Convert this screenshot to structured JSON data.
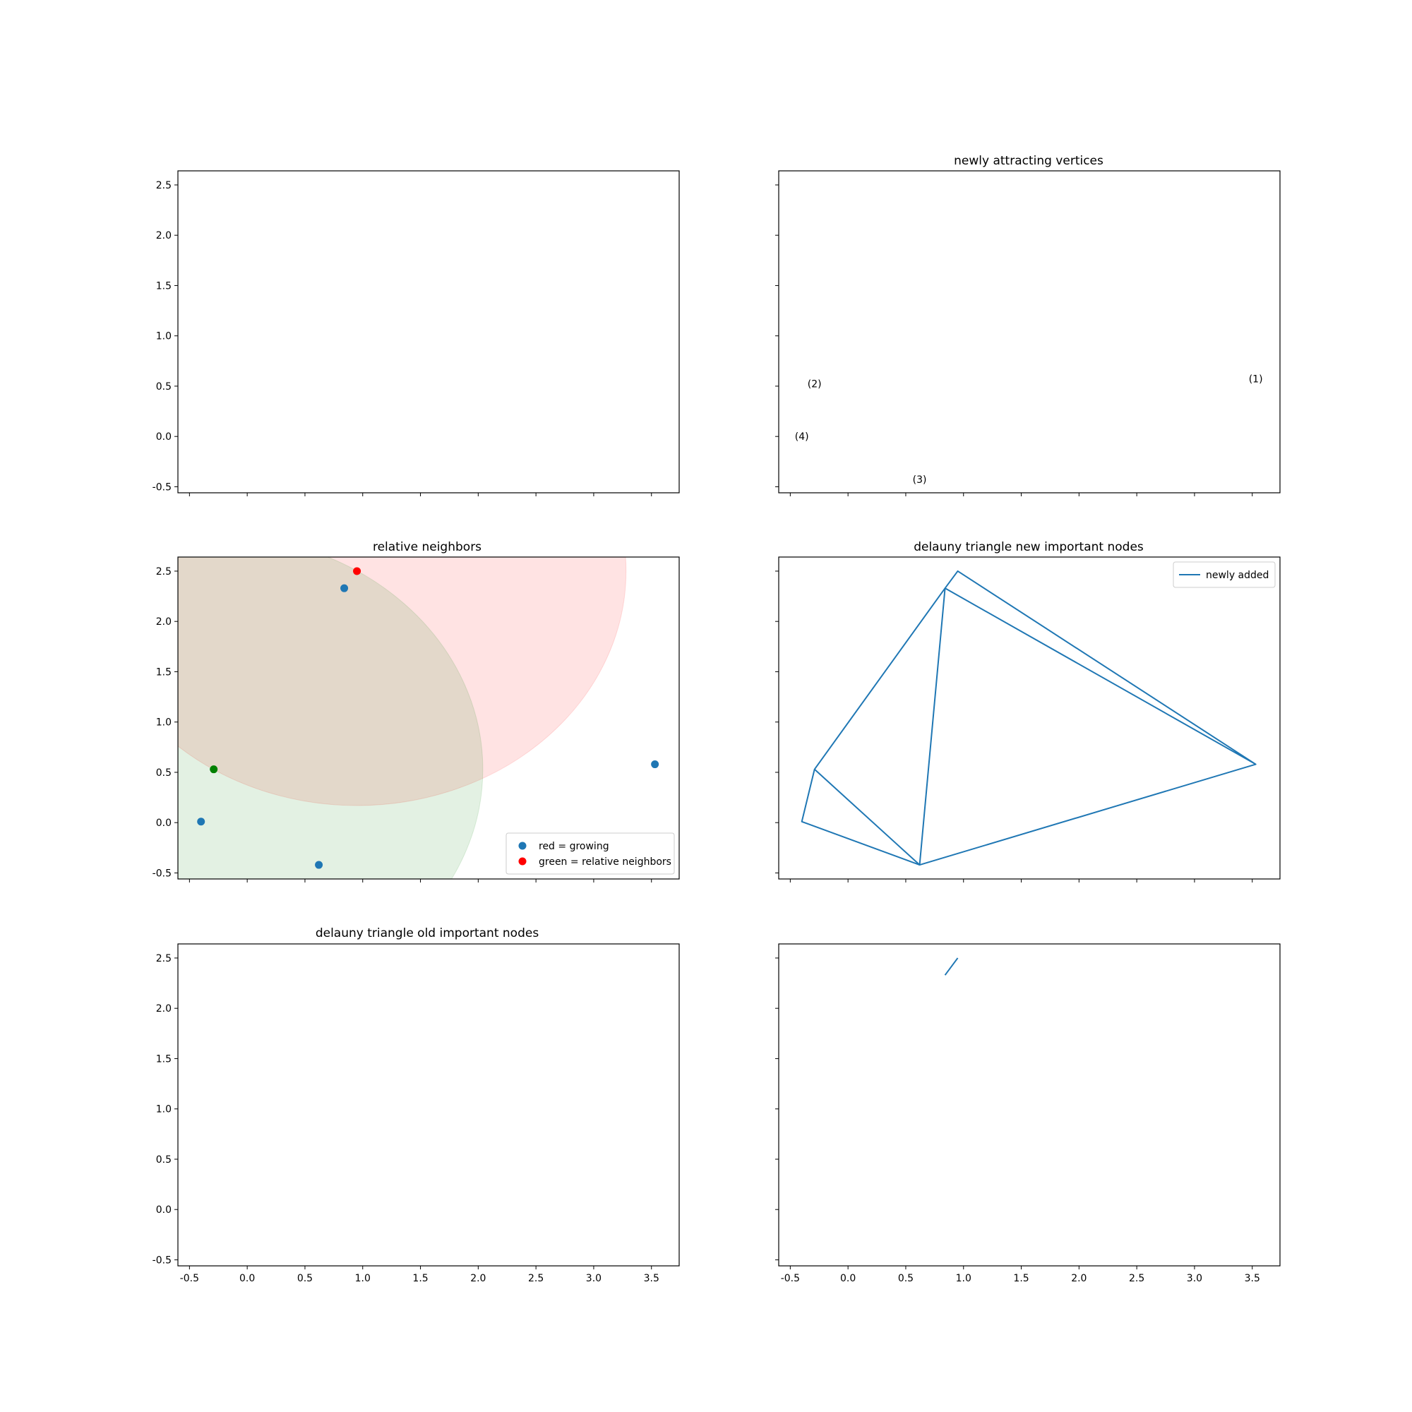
{
  "chart_data": [
    {
      "type": "scatter",
      "panel": "top-left",
      "title": "",
      "xlim": [
        -0.6,
        3.74
      ],
      "ylim": [
        -0.56,
        2.64
      ],
      "xticks": [
        -0.5,
        0.0,
        0.5,
        1.0,
        1.5,
        2.0,
        2.5,
        3.0,
        3.5
      ],
      "yticks": [
        -0.5,
        0.0,
        0.5,
        1.0,
        1.5,
        2.0,
        2.5
      ],
      "show_x_labels": false,
      "show_y_labels": true,
      "points": [],
      "circles": [],
      "lines": [],
      "annotations": []
    },
    {
      "type": "scatter",
      "panel": "top-right",
      "title": "newly attracting vertices",
      "xlim": [
        -0.6,
        3.74
      ],
      "ylim": [
        -0.56,
        2.64
      ],
      "xticks": [
        -0.5,
        0.0,
        0.5,
        1.0,
        1.5,
        2.0,
        2.5,
        3.0,
        3.5
      ],
      "yticks": [
        -0.5,
        0.0,
        0.5,
        1.0,
        1.5,
        2.0,
        2.5
      ],
      "show_x_labels": false,
      "show_y_labels": false,
      "points": [],
      "circles": [],
      "lines": [],
      "annotations": [
        {
          "text": "(1)",
          "x": 3.53,
          "y": 0.58
        },
        {
          "text": "(2)",
          "x": -0.29,
          "y": 0.53
        },
        {
          "text": "(3)",
          "x": 0.62,
          "y": -0.42
        },
        {
          "text": "(4)",
          "x": -0.4,
          "y": 0.01
        }
      ]
    },
    {
      "type": "scatter",
      "panel": "middle-left",
      "title": "relative neighbors",
      "xlim": [
        -0.6,
        3.74
      ],
      "ylim": [
        -0.56,
        2.64
      ],
      "xticks": [
        -0.5,
        0.0,
        0.5,
        1.0,
        1.5,
        2.0,
        2.5,
        3.0,
        3.5
      ],
      "yticks": [
        -0.5,
        0.0,
        0.5,
        1.0,
        1.5,
        2.0,
        2.5
      ],
      "show_x_labels": false,
      "show_y_labels": true,
      "circles": [
        {
          "cx": 0.95,
          "cy": 2.5,
          "r": 2.33,
          "color": "#ff0000",
          "opacity": 0.11
        },
        {
          "cx": -0.29,
          "cy": 0.53,
          "r": 2.33,
          "color": "#008000",
          "opacity": 0.11
        }
      ],
      "points": [
        {
          "x": 3.53,
          "y": 0.58,
          "color": "#1f77b4"
        },
        {
          "x": -0.4,
          "y": 0.01,
          "color": "#1f77b4"
        },
        {
          "x": 0.62,
          "y": -0.42,
          "color": "#1f77b4"
        },
        {
          "x": 0.84,
          "y": 2.33,
          "color": "#1f77b4"
        },
        {
          "x": 0.95,
          "y": 2.5,
          "color": "#ff0000"
        },
        {
          "x": -0.29,
          "y": 0.53,
          "color": "#008000"
        }
      ],
      "lines": [],
      "annotations": [],
      "legend": {
        "position": "lower-right",
        "items": [
          {
            "label": "red = growing",
            "color": "#1f77b4",
            "marker": "dot"
          },
          {
            "label": "green = relative neighbors",
            "color": "#ff0000",
            "marker": "dot"
          }
        ]
      }
    },
    {
      "type": "line",
      "panel": "middle-right",
      "title": "delauny triangle new important nodes",
      "xlim": [
        -0.6,
        3.74
      ],
      "ylim": [
        -0.56,
        2.64
      ],
      "xticks": [
        -0.5,
        0.0,
        0.5,
        1.0,
        1.5,
        2.0,
        2.5,
        3.0,
        3.5
      ],
      "yticks": [
        -0.5,
        0.0,
        0.5,
        1.0,
        1.5,
        2.0,
        2.5
      ],
      "show_x_labels": false,
      "show_y_labels": false,
      "points": [],
      "circles": [],
      "annotations": [],
      "lines": [
        {
          "color": "#1f77b4",
          "points": [
            [
              0.84,
              2.33
            ],
            [
              0.95,
              2.5
            ],
            [
              3.53,
              0.58
            ],
            [
              0.84,
              2.33
            ],
            [
              -0.29,
              0.53
            ],
            [
              -0.4,
              0.01
            ],
            [
              0.62,
              -0.42
            ],
            [
              3.53,
              0.58
            ]
          ]
        },
        {
          "color": "#1f77b4",
          "points": [
            [
              0.84,
              2.33
            ],
            [
              0.62,
              -0.42
            ]
          ]
        },
        {
          "color": "#1f77b4",
          "points": [
            [
              -0.29,
              0.53
            ],
            [
              0.62,
              -0.42
            ]
          ]
        }
      ],
      "legend": {
        "position": "upper-right",
        "items": [
          {
            "label": "newly added",
            "color": "#1f77b4",
            "marker": "line"
          }
        ]
      }
    },
    {
      "type": "line",
      "panel": "bottom-left",
      "title": "delauny triangle old important nodes",
      "xlim": [
        -0.6,
        3.74
      ],
      "ylim": [
        -0.56,
        2.64
      ],
      "xticks": [
        -0.5,
        0.0,
        0.5,
        1.0,
        1.5,
        2.0,
        2.5,
        3.0,
        3.5
      ],
      "yticks": [
        -0.5,
        0.0,
        0.5,
        1.0,
        1.5,
        2.0,
        2.5
      ],
      "show_x_labels": true,
      "show_y_labels": true,
      "points": [],
      "circles": [],
      "lines": [],
      "annotations": []
    },
    {
      "type": "line",
      "panel": "bottom-right",
      "title": "",
      "xlim": [
        -0.6,
        3.74
      ],
      "ylim": [
        -0.56,
        2.64
      ],
      "xticks": [
        -0.5,
        0.0,
        0.5,
        1.0,
        1.5,
        2.0,
        2.5,
        3.0,
        3.5
      ],
      "yticks": [
        -0.5,
        0.0,
        0.5,
        1.0,
        1.5,
        2.0,
        2.5
      ],
      "show_x_labels": true,
      "show_y_labels": false,
      "points": [],
      "circles": [],
      "annotations": [],
      "lines": [
        {
          "color": "#1f77b4",
          "points": [
            [
              0.84,
              2.33
            ],
            [
              0.95,
              2.5
            ]
          ]
        }
      ]
    }
  ]
}
